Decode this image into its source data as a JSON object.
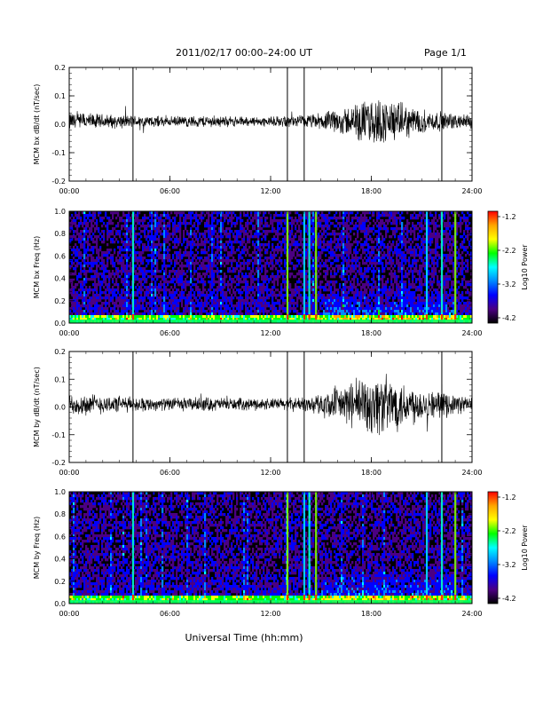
{
  "header": {
    "title": "2011/02/17  00:00–24:00 UT",
    "page": "Page 1/1"
  },
  "footer": {
    "xlabel": "Universal Time (hh:mm)"
  },
  "colorbar": {
    "label": "Log10 Power",
    "ticks": [
      "-1.2",
      "-2.2",
      "-3.2",
      "-4.2"
    ],
    "stops": [
      "#ff0000",
      "#ffa500",
      "#ffff00",
      "#00ff00",
      "#00ffff",
      "#0088ff",
      "#0000ff",
      "#4b0082",
      "#000000"
    ]
  },
  "x_ticks": [
    "00:00",
    "06:00",
    "12:00",
    "18:00",
    "24:00"
  ],
  "chart_data": [
    {
      "type": "line",
      "title": "",
      "ylabel": "MCM bx dB/dt (nT/sec)",
      "xlabel": "",
      "x_range_hours": [
        0,
        24
      ],
      "ylim": [
        -0.2,
        0.2
      ],
      "y_ticks": [
        "0.2",
        "0.1",
        "0.0",
        "-0.1",
        "-0.2"
      ],
      "spikes_hours": [
        3.8,
        13.0,
        14.0,
        22.2
      ],
      "noise_envelope": {
        "hours": [
          0,
          2,
          4,
          6,
          8,
          10,
          12,
          14,
          15,
          16,
          17,
          18,
          19,
          20,
          21,
          22,
          23,
          24
        ],
        "amplitude": [
          0.04,
          0.03,
          0.025,
          0.02,
          0.025,
          0.02,
          0.02,
          0.025,
          0.035,
          0.05,
          0.07,
          0.1,
          0.09,
          0.07,
          0.05,
          0.04,
          0.03,
          0.03
        ]
      }
    },
    {
      "type": "heatmap",
      "title": "",
      "ylabel": "MCM bx Freq (Hz)",
      "xlabel": "",
      "x_range_hours": [
        0,
        24
      ],
      "ylim": [
        0.0,
        1.0
      ],
      "y_ticks": [
        "1.0",
        "0.8",
        "0.6",
        "0.4",
        "0.2",
        "0.0"
      ],
      "bright_lines_hours": [
        3.8,
        13.0,
        14.0,
        14.3,
        14.7,
        21.3,
        22.2,
        23.0
      ],
      "colorbar_range": [
        -4.2,
        -1.2
      ]
    },
    {
      "type": "line",
      "title": "",
      "ylabel": "MCM by dB/dt (nT/sec)",
      "xlabel": "",
      "x_range_hours": [
        0,
        24
      ],
      "ylim": [
        -0.2,
        0.2
      ],
      "y_ticks": [
        "0.2",
        "0.1",
        "0.0",
        "-0.1",
        "-0.2"
      ],
      "spikes_hours": [
        3.8,
        13.0,
        14.0,
        22.2
      ],
      "noise_envelope": {
        "hours": [
          0,
          2,
          4,
          6,
          8,
          10,
          12,
          14,
          15,
          16,
          17,
          18,
          19,
          20,
          21,
          22,
          23,
          24
        ],
        "amplitude": [
          0.05,
          0.04,
          0.03,
          0.025,
          0.03,
          0.025,
          0.025,
          0.03,
          0.045,
          0.07,
          0.1,
          0.14,
          0.12,
          0.1,
          0.07,
          0.05,
          0.04,
          0.035
        ]
      }
    },
    {
      "type": "heatmap",
      "title": "",
      "ylabel": "MCM by Freq (Hz)",
      "xlabel": "",
      "x_range_hours": [
        0,
        24
      ],
      "ylim": [
        0.0,
        1.0
      ],
      "y_ticks": [
        "1.0",
        "0.8",
        "0.6",
        "0.4",
        "0.2",
        "0.0"
      ],
      "bright_lines_hours": [
        3.8,
        13.0,
        14.0,
        14.3,
        14.7,
        21.3,
        22.2,
        23.0
      ],
      "colorbar_range": [
        -4.2,
        -1.2
      ]
    }
  ]
}
